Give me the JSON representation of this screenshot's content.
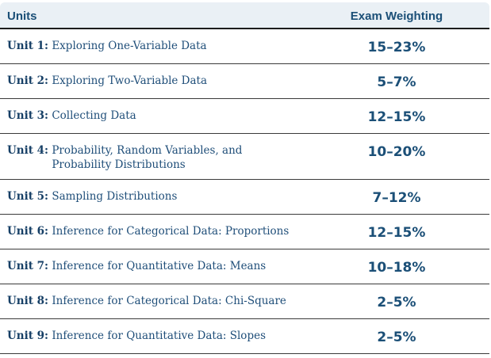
{
  "header": {
    "units_label": "Units",
    "weighting_label": "Exam Weighting"
  },
  "rows": [
    {
      "unit": "Unit 1:",
      "title": "Exploring One-Variable Data",
      "weighting": "15–23%"
    },
    {
      "unit": "Unit 2:",
      "title": "Exploring Two-Variable Data",
      "weighting": "5–7%"
    },
    {
      "unit": "Unit 3:",
      "title": "Collecting Data",
      "weighting": "12–15%"
    },
    {
      "unit": "Unit 4:",
      "title": "Probability, Random Variables, and",
      "title_line2": "Probability Distributions",
      "weighting": "10–20%"
    },
    {
      "unit": "Unit 5:",
      "title": "Sampling Distributions",
      "weighting": "7–12%"
    },
    {
      "unit": "Unit 6:",
      "title": "Inference for Categorical Data: Proportions",
      "weighting": "12–15%"
    },
    {
      "unit": "Unit 7:",
      "title": "Inference for Quantitative Data: Means",
      "weighting": "10–18%"
    },
    {
      "unit": "Unit 8:",
      "title": "Inference for Categorical Data: Chi-Square",
      "weighting": "2–5%"
    },
    {
      "unit": "Unit 9:",
      "title": "Inference for Quantitative Data: Slopes",
      "weighting": "2–5%"
    }
  ]
}
